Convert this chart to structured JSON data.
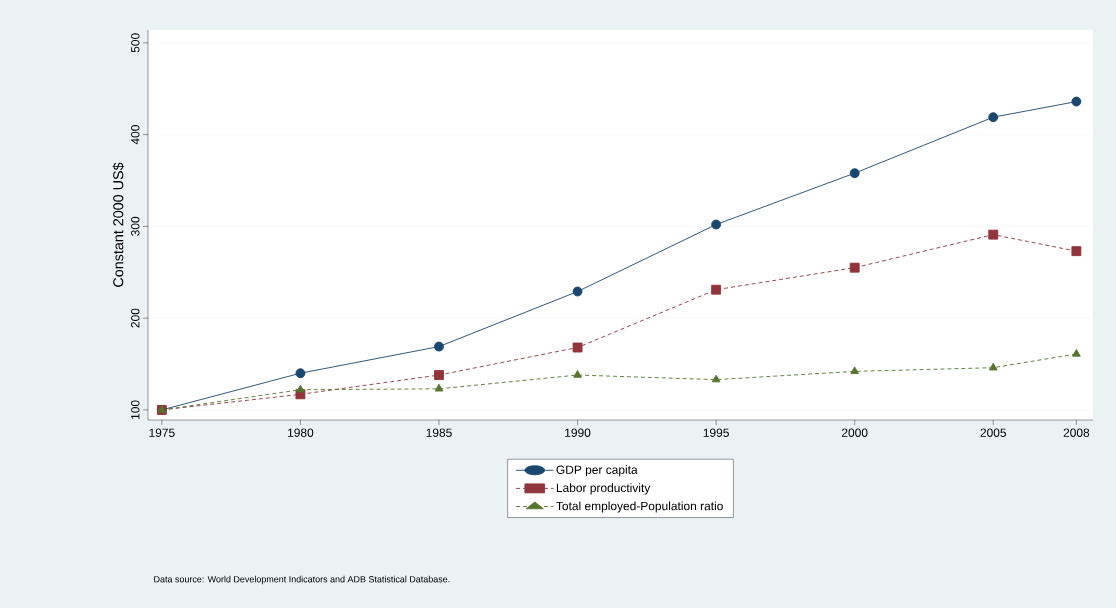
{
  "chart_data": {
    "type": "line",
    "ylabel": "Constant 2000 US$",
    "x": [
      1975,
      1980,
      1985,
      1990,
      1995,
      2000,
      2005,
      2008
    ],
    "series": [
      {
        "name": "GDP per capita",
        "color": "#1a476f",
        "marker": "circle",
        "line_style": "solid",
        "values": [
          100,
          140,
          169,
          229,
          302,
          358,
          419,
          436
        ]
      },
      {
        "name": "Labor productivity",
        "color": "#90353b",
        "marker": "square",
        "line_style": "dashed",
        "values": [
          100,
          117,
          138,
          168,
          231,
          255,
          291,
          273
        ]
      },
      {
        "name": "Total employed-Population ratio",
        "color": "#55752f",
        "marker": "triangle",
        "line_style": "dashed",
        "values": [
          100,
          122,
          123,
          138,
          133,
          142,
          146,
          161
        ]
      }
    ],
    "xlim": [
      1974.5,
      2008.6
    ],
    "ylim": [
      89,
      514
    ],
    "xticks": [
      1975,
      1980,
      1985,
      1990,
      1995,
      2000,
      2005,
      2008
    ],
    "yticks": [
      100,
      200,
      300,
      400,
      500
    ],
    "grid": "y",
    "legend": "bottom",
    "annotations": [
      "Data source: World Development Indicators and ADB Statistical Database."
    ]
  }
}
